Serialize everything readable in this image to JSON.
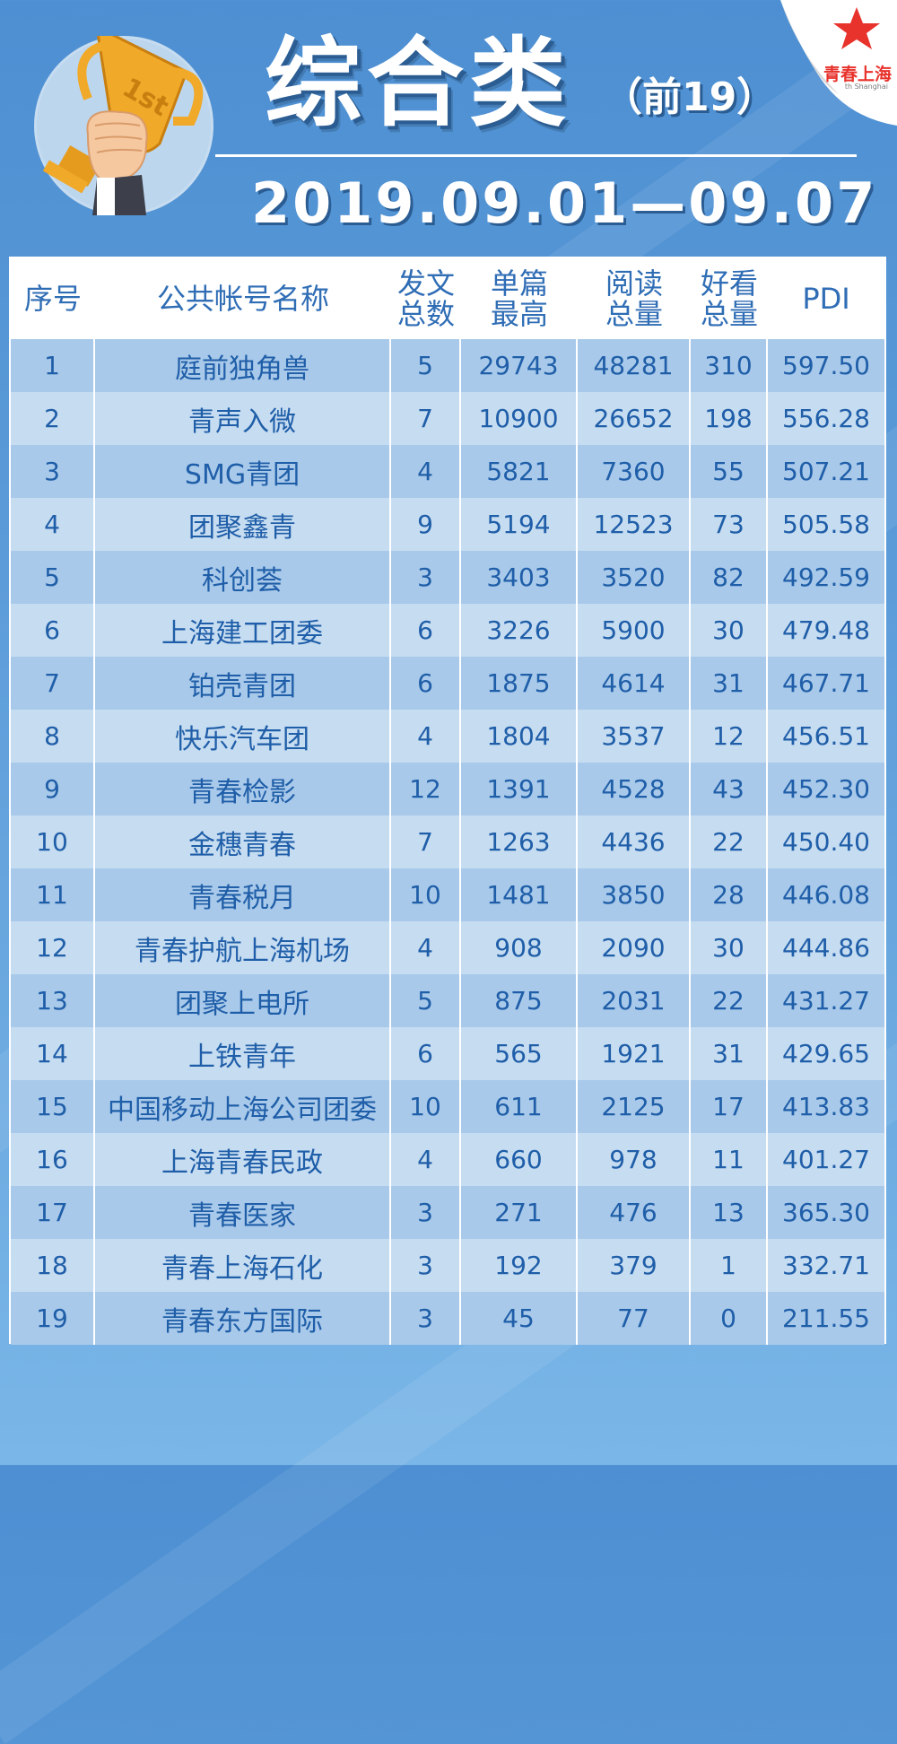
{
  "title": "综合类",
  "subtitle": "（前19）",
  "date_range": "2019.09.01—09.07",
  "badge": {
    "trophy_label": "1st"
  },
  "logo": {
    "name": "青春上海",
    "tagline": "th Shanghai"
  },
  "colors": {
    "background": "#5a9ad8",
    "header_text": "#2f6db5",
    "row_dark": "#a8c9ea",
    "row_light": "#c6dcf1",
    "logo_red": "#e8322c"
  },
  "table": {
    "headers": [
      "序号",
      "公共帐号名称",
      "发文\n总数",
      "单篇\n最高",
      "阅读\n总量",
      "好看\n总量",
      "PDI"
    ],
    "rows": [
      [
        "1",
        "庭前独角兽",
        "5",
        "29743",
        "48281",
        "310",
        "597.50"
      ],
      [
        "2",
        "青声入微",
        "7",
        "10900",
        "26652",
        "198",
        "556.28"
      ],
      [
        "3",
        "SMG青团",
        "4",
        "5821",
        "7360",
        "55",
        "507.21"
      ],
      [
        "4",
        "团聚鑫青",
        "9",
        "5194",
        "12523",
        "73",
        "505.58"
      ],
      [
        "5",
        "科创荟",
        "3",
        "3403",
        "3520",
        "82",
        "492.59"
      ],
      [
        "6",
        "上海建工团委",
        "6",
        "3226",
        "5900",
        "30",
        "479.48"
      ],
      [
        "7",
        "铂壳青团",
        "6",
        "1875",
        "4614",
        "31",
        "467.71"
      ],
      [
        "8",
        "快乐汽车团",
        "4",
        "1804",
        "3537",
        "12",
        "456.51"
      ],
      [
        "9",
        "青春检影",
        "12",
        "1391",
        "4528",
        "43",
        "452.30"
      ],
      [
        "10",
        "金穗青春",
        "7",
        "1263",
        "4436",
        "22",
        "450.40"
      ],
      [
        "11",
        "青春税月",
        "10",
        "1481",
        "3850",
        "28",
        "446.08"
      ],
      [
        "12",
        "青春护航上海机场",
        "4",
        "908",
        "2090",
        "30",
        "444.86"
      ],
      [
        "13",
        "团聚上电所",
        "5",
        "875",
        "2031",
        "22",
        "431.27"
      ],
      [
        "14",
        "上铁青年",
        "6",
        "565",
        "1921",
        "31",
        "429.65"
      ],
      [
        "15",
        "中国移动上海公司团委",
        "10",
        "611",
        "2125",
        "17",
        "413.83"
      ],
      [
        "16",
        "上海青春民政",
        "4",
        "660",
        "978",
        "11",
        "401.27"
      ],
      [
        "17",
        "青春医家",
        "3",
        "271",
        "476",
        "13",
        "365.30"
      ],
      [
        "18",
        "青春上海石化",
        "3",
        "192",
        "379",
        "1",
        "332.71"
      ],
      [
        "19",
        "青春东方国际",
        "3",
        "45",
        "77",
        "0",
        "211.55"
      ]
    ]
  }
}
